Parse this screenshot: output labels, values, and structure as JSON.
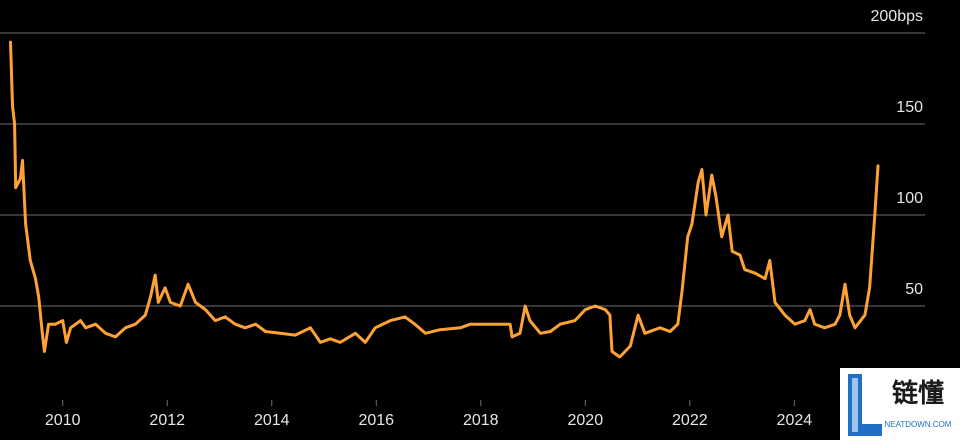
{
  "chart_data": {
    "type": "line",
    "x": [
      2009.0,
      2009.04,
      2009.08,
      2009.1,
      2009.19,
      2009.23,
      2009.29,
      2009.38,
      2009.48,
      2009.54,
      2009.61,
      2009.65,
      2009.73,
      2009.86,
      2010.0,
      2010.07,
      2010.15,
      2010.34,
      2010.44,
      2010.63,
      2010.82,
      2011.01,
      2011.2,
      2011.39,
      2011.58,
      2011.68,
      2011.77,
      2011.83,
      2011.96,
      2012.06,
      2012.25,
      2012.4,
      2012.54,
      2012.73,
      2012.92,
      2013.11,
      2013.3,
      2013.49,
      2013.69,
      2013.88,
      2014.16,
      2014.45,
      2014.74,
      2014.93,
      2015.12,
      2015.31,
      2015.6,
      2015.79,
      2015.98,
      2016.27,
      2016.55,
      2016.74,
      2016.94,
      2017.22,
      2017.61,
      2017.8,
      2018.56,
      2018.6,
      2018.75,
      2018.85,
      2018.94,
      2019.14,
      2019.33,
      2019.52,
      2019.8,
      2020.0,
      2020.19,
      2020.38,
      2020.47,
      2020.51,
      2020.66,
      2020.86,
      2021.01,
      2021.14,
      2021.43,
      2021.62,
      2021.77,
      2021.85,
      2021.96,
      2022.04,
      2022.16,
      2022.23,
      2022.31,
      2022.42,
      2022.5,
      2022.61,
      2022.73,
      2022.81,
      2022.96,
      2023.05,
      2023.25,
      2023.44,
      2023.53,
      2023.63,
      2023.82,
      2024.01,
      2024.2,
      2024.3,
      2024.39,
      2024.58,
      2024.78,
      2024.87,
      2024.97,
      2025.06,
      2025.16,
      2025.35,
      2025.44,
      2025.54,
      2025.6
    ],
    "values": [
      195,
      160,
      150,
      115,
      120,
      130,
      95,
      75,
      65,
      55,
      35,
      25,
      40,
      40,
      42,
      30,
      38,
      42,
      38,
      40,
      35,
      33,
      38,
      40,
      45,
      55,
      67,
      52,
      60,
      52,
      50,
      62,
      52,
      48,
      42,
      44,
      40,
      38,
      40,
      36,
      35,
      34,
      38,
      30,
      32,
      30,
      35,
      30,
      38,
      42,
      44,
      40,
      35,
      37,
      38,
      40,
      40,
      33,
      35,
      50,
      42,
      35,
      36,
      40,
      42,
      48,
      50,
      48,
      45,
      25,
      22,
      28,
      45,
      35,
      38,
      36,
      40,
      58,
      88,
      95,
      118,
      125,
      100,
      122,
      110,
      88,
      100,
      80,
      78,
      70,
      68,
      65,
      75,
      52,
      45,
      40,
      42,
      48,
      40,
      38,
      40,
      45,
      62,
      45,
      38,
      45,
      60,
      100,
      127
    ],
    "color": "#ffa133",
    "xlim": [
      2008.8,
      2026.5
    ],
    "xticks": [
      2010,
      2012,
      2014,
      2016,
      2018,
      2020,
      2022,
      2024
    ],
    "ylim": [
      0,
      200
    ],
    "yticks": [
      50,
      100,
      150,
      {
        "value": 200,
        "label": "200bps"
      }
    ],
    "grid": true,
    "watermark": {
      "title": "链懂",
      "subtitle": "NEATDOWN.COM"
    }
  }
}
